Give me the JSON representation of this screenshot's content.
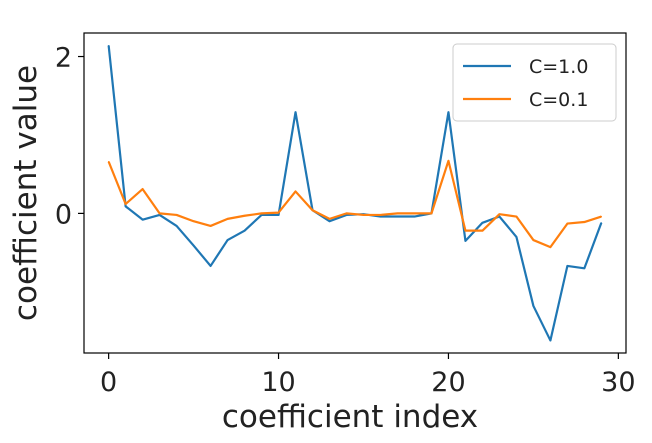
{
  "chart_data": {
    "type": "line",
    "title": "",
    "xlabel": "coefficient index",
    "ylabel": "coefficient value",
    "xlim": [
      -1.45,
      30.45
    ],
    "ylim": [
      -1.78,
      2.3
    ],
    "xticks": [
      0,
      10,
      20,
      30
    ],
    "xtick_labels": [
      "0",
      "10",
      "20",
      "30"
    ],
    "yticks": [
      2,
      0
    ],
    "ytick_labels": [
      "2",
      "0"
    ],
    "grid": false,
    "legend_position": "top-right",
    "x": [
      0,
      1,
      2,
      3,
      4,
      5,
      6,
      7,
      8,
      9,
      10,
      11,
      12,
      13,
      14,
      15,
      16,
      17,
      18,
      19,
      20,
      21,
      22,
      23,
      24,
      25,
      26,
      27,
      28,
      29
    ],
    "series": [
      {
        "name": "C=1.0",
        "color": "#1f77b4",
        "values": [
          2.14,
          0.09,
          -0.08,
          -0.02,
          -0.16,
          -0.41,
          -0.67,
          -0.34,
          -0.22,
          -0.02,
          -0.02,
          1.29,
          0.04,
          -0.1,
          -0.02,
          -0.01,
          -0.04,
          -0.04,
          -0.04,
          0.0,
          1.29,
          -0.35,
          -0.12,
          -0.04,
          -0.3,
          -1.18,
          -1.62,
          -0.67,
          -0.7,
          -0.12
        ]
      },
      {
        "name": "C=0.1",
        "color": "#ff7f0e",
        "values": [
          0.66,
          0.12,
          0.31,
          0.0,
          -0.02,
          -0.1,
          -0.16,
          -0.07,
          -0.03,
          0.0,
          0.01,
          0.28,
          0.04,
          -0.07,
          0.0,
          -0.02,
          -0.02,
          0.0,
          0.0,
          0.0,
          0.67,
          -0.22,
          -0.22,
          -0.01,
          -0.04,
          -0.34,
          -0.43,
          -0.13,
          -0.11,
          -0.04
        ]
      }
    ]
  }
}
